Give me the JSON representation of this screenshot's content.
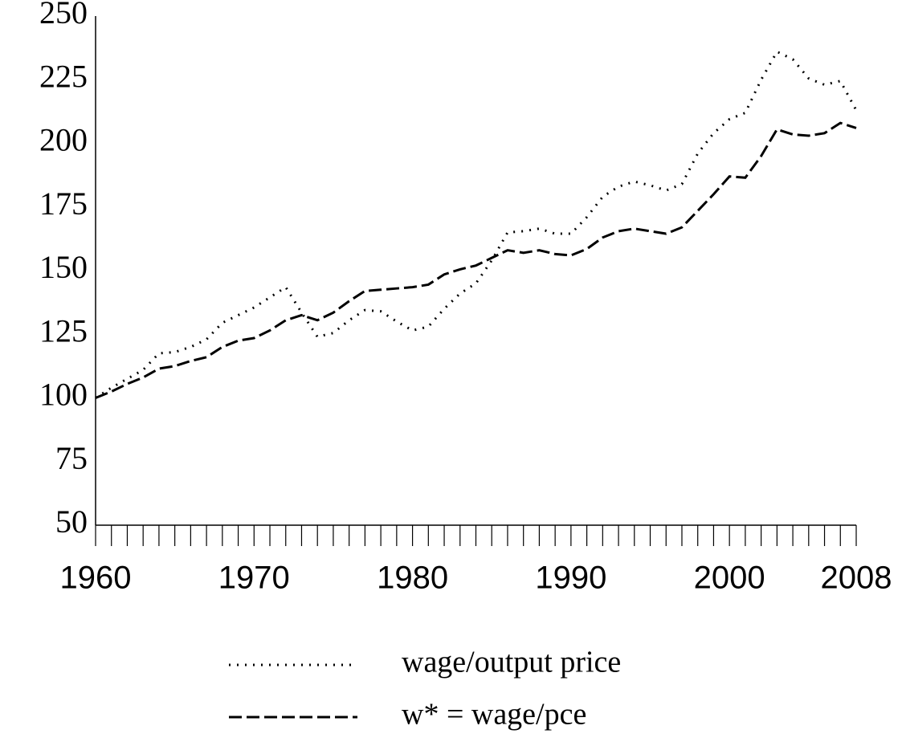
{
  "chart_data": {
    "type": "line",
    "x": [
      1960,
      1961,
      1962,
      1963,
      1964,
      1965,
      1966,
      1967,
      1968,
      1969,
      1970,
      1971,
      1972,
      1973,
      1974,
      1975,
      1976,
      1977,
      1978,
      1979,
      1980,
      1981,
      1982,
      1983,
      1984,
      1985,
      1986,
      1987,
      1988,
      1989,
      1990,
      1991,
      1992,
      1993,
      1994,
      1995,
      1996,
      1997,
      1998,
      1999,
      2000,
      2001,
      2002,
      2003,
      2004,
      2005,
      2006,
      2007,
      2008
    ],
    "series": [
      {
        "name": "wage/output price",
        "color": "#000000",
        "style": "dotted",
        "values": [
          100,
          104,
          107.5,
          111,
          117.5,
          118,
          120,
          123,
          129.5,
          132.5,
          135.5,
          139.5,
          143.5,
          133.5,
          124,
          125.5,
          130.5,
          134.5,
          134,
          130,
          126.5,
          128,
          135,
          141,
          145,
          154,
          165,
          165.5,
          166.5,
          164.5,
          164.5,
          171,
          179,
          183,
          185,
          183.5,
          181.5,
          184,
          196,
          204,
          209.5,
          212,
          225,
          236,
          233,
          225.5,
          223,
          224.5,
          213
        ]
      },
      {
        "name": "w* = wage/pce",
        "color": "#000000",
        "style": "dashed",
        "values": [
          100,
          102.5,
          105.5,
          108,
          111.5,
          112.5,
          114.5,
          116,
          120,
          122.5,
          123.5,
          126.5,
          130.5,
          132.5,
          130.5,
          133.5,
          138,
          142,
          142.5,
          143,
          143.5,
          144.5,
          148.5,
          150.5,
          152,
          155,
          158,
          157,
          158,
          156.5,
          156,
          158.5,
          163,
          165.5,
          166.5,
          165.5,
          164.5,
          167,
          173.5,
          180,
          187,
          186.5,
          195,
          205.5,
          203.5,
          203,
          204,
          208,
          206
        ]
      }
    ],
    "xlim": [
      1960,
      2008
    ],
    "xticks": [
      1960,
      1970,
      1980,
      1990,
      2000,
      2008
    ],
    "minor_xticks": [
      1960,
      1961,
      1962,
      1963,
      1964,
      1965,
      1966,
      1967,
      1968,
      1969,
      1970,
      1971,
      1972,
      1973,
      1974,
      1975,
      1976,
      1977,
      1978,
      1979,
      1980,
      1981,
      1982,
      1983,
      1984,
      1985,
      1986,
      1987,
      1988,
      1989,
      1990,
      1991,
      1992,
      1993,
      1994,
      1995,
      1996,
      1997,
      1998,
      1999,
      2000,
      2001,
      2002,
      2003,
      2004,
      2005,
      2006,
      2007,
      2008
    ],
    "ylim": [
      50,
      250
    ],
    "yticks": [
      50,
      75,
      100,
      125,
      150,
      175,
      200,
      225,
      250
    ],
    "grid": false,
    "legend": "bottom"
  }
}
